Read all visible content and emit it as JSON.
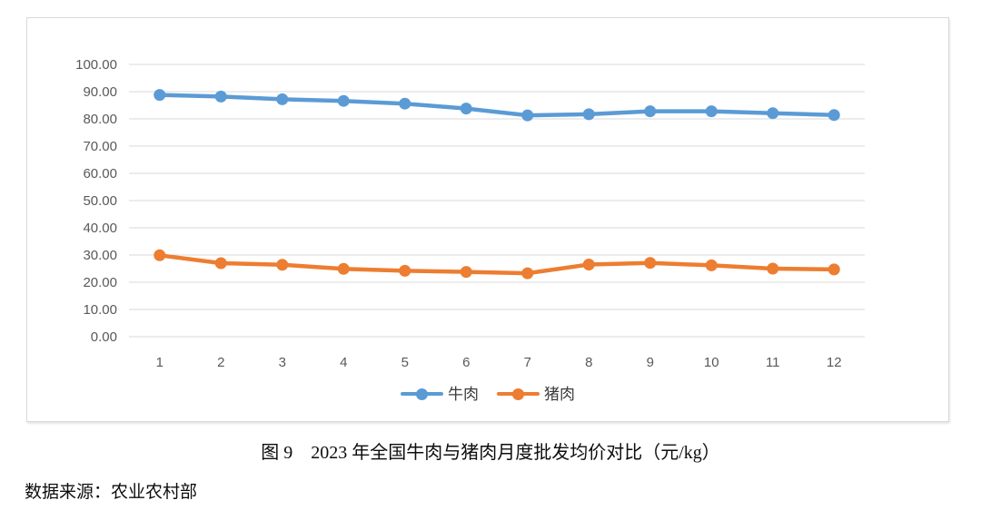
{
  "page": {
    "caption": "图 9　2023 年全国牛肉与猪肉月度批发均价对比（元/kg）",
    "source": "数据来源：农业农村部"
  },
  "chart_data": {
    "type": "line",
    "title": "",
    "xlabel": "",
    "ylabel": "",
    "categories": [
      "1",
      "2",
      "3",
      "4",
      "5",
      "6",
      "7",
      "8",
      "9",
      "10",
      "11",
      "12"
    ],
    "series": [
      {
        "name": "牛肉",
        "color": "#5B9BD5",
        "values": [
          88.8,
          88.2,
          87.2,
          86.6,
          85.6,
          83.8,
          81.3,
          81.7,
          82.8,
          82.8,
          82.1,
          81.4
        ]
      },
      {
        "name": "猪肉",
        "color": "#ED7D31",
        "values": [
          29.9,
          27.0,
          26.4,
          24.9,
          24.2,
          23.8,
          23.3,
          26.5,
          27.1,
          26.2,
          25.0,
          24.7
        ]
      }
    ],
    "ylim": [
      0,
      100
    ],
    "y_tick_step": 10,
    "y_ticks": [
      "0.00",
      "10.00",
      "20.00",
      "30.00",
      "40.00",
      "50.00",
      "60.00",
      "70.00",
      "80.00",
      "90.00",
      "100.00"
    ],
    "grid": true,
    "legend_position": "bottom",
    "gridline_color": "#D9D9D9",
    "tick_label_color": "#595959",
    "marker_style": "circle"
  }
}
